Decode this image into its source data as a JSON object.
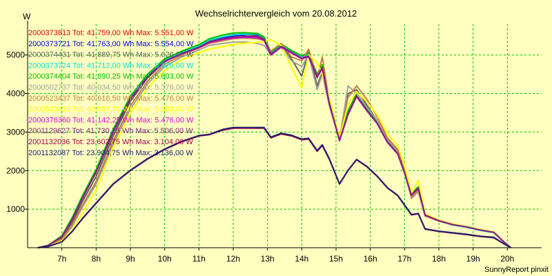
{
  "chart_data": {
    "type": "line",
    "title": "Wechselrichtervergleich vom 20.08.2012",
    "ylabel": "W",
    "xlabel": "",
    "footer": "SunnyReport pinxit",
    "xlim": [
      6.0,
      21.0
    ],
    "ylim": [
      0,
      5800
    ],
    "yticks": [
      {
        "value": 1000,
        "label": "1000"
      },
      {
        "value": 2000,
        "label": "2000"
      },
      {
        "value": 3000,
        "label": "3000"
      },
      {
        "value": 4000,
        "label": "4000"
      },
      {
        "value": 5000,
        "label": "5000"
      }
    ],
    "xticks": [
      {
        "value": 7,
        "label": "7h"
      },
      {
        "value": 8,
        "label": "8h"
      },
      {
        "value": 9,
        "label": "9h"
      },
      {
        "value": 10,
        "label": "10h"
      },
      {
        "value": 11,
        "label": "11h"
      },
      {
        "value": 12,
        "label": "12h"
      },
      {
        "value": 13,
        "label": "13h"
      },
      {
        "value": 14,
        "label": "14h"
      },
      {
        "value": 15,
        "label": "15h"
      },
      {
        "value": 16,
        "label": "16h"
      },
      {
        "value": 17,
        "label": "17h"
      },
      {
        "value": 18,
        "label": "18h"
      },
      {
        "value": 19,
        "label": "19h"
      },
      {
        "value": 20,
        "label": "20h"
      }
    ],
    "grid": true,
    "colors": {
      "background": "#ffffc0",
      "grid": "#00c000",
      "axis": "#000000"
    },
    "x": [
      6.3,
      6.6,
      7.0,
      7.3,
      7.6,
      8.0,
      8.5,
      9.0,
      9.5,
      10.0,
      10.5,
      11.0,
      11.3,
      11.7,
      12.0,
      12.3,
      12.7,
      12.9,
      13.1,
      13.4,
      13.7,
      14.0,
      14.2,
      14.45,
      14.6,
      14.8,
      15.1,
      15.35,
      15.6,
      15.9,
      16.2,
      16.5,
      16.8,
      17.0,
      17.2,
      17.4,
      17.6,
      18.0,
      18.4,
      18.8,
      19.2,
      19.6,
      19.9,
      20.1
    ],
    "series": [
      {
        "name": "2000373813",
        "legend": "2000373813 Tot: 41.759,00 Wh Max: 5.551,00 W",
        "color": "#e00000",
        "values": [
          0,
          60,
          300,
          760,
          1320,
          2000,
          3050,
          3900,
          4480,
          4880,
          5080,
          5250,
          5380,
          5450,
          5500,
          5520,
          5530,
          5450,
          5040,
          5250,
          5100,
          4940,
          5000,
          4480,
          4700,
          3800,
          2800,
          3500,
          3960,
          3580,
          3250,
          2750,
          2450,
          1950,
          1380,
          1560,
          850,
          700,
          600,
          540,
          460,
          400,
          150,
          0
        ]
      },
      {
        "name": "2000373721",
        "legend": "2000373721 Tot: 41.763,00 Wh Max: 5.554,00 W",
        "color": "#0000e0",
        "values": [
          0,
          60,
          300,
          760,
          1320,
          2000,
          3050,
          3900,
          4480,
          4880,
          5080,
          5250,
          5380,
          5450,
          5500,
          5520,
          5530,
          5450,
          5040,
          5250,
          5100,
          4940,
          5000,
          4480,
          4700,
          3800,
          2800,
          3500,
          3960,
          3580,
          3250,
          2750,
          2450,
          1950,
          1380,
          1560,
          850,
          700,
          600,
          540,
          460,
          400,
          150,
          0
        ]
      },
      {
        "name": "2000374431",
        "legend": "2000374431 Tot: 41.889,75 Wh Max: 5.626,00 W",
        "color": "#606060",
        "values": [
          0,
          50,
          250,
          650,
          1200,
          1850,
          2900,
          3800,
          4400,
          4820,
          5050,
          5230,
          5370,
          5470,
          5530,
          5540,
          5500,
          5430,
          5050,
          5280,
          4900,
          4450,
          5100,
          4200,
          4550,
          3700,
          2800,
          4000,
          4100,
          3700,
          3300,
          2800,
          2500,
          1950,
          1300,
          1480,
          830,
          710,
          610,
          550,
          470,
          410,
          150,
          0
        ]
      },
      {
        "name": "2000373724",
        "legend": "2000373724 Tot: 41.712,00 Wh Max: 5.620,00 W",
        "color": "#00e0e0",
        "values": [
          0,
          55,
          290,
          740,
          1300,
          1980,
          3020,
          3880,
          4460,
          4870,
          5070,
          5240,
          5390,
          5470,
          5520,
          5540,
          5550,
          5460,
          5030,
          5240,
          5100,
          4950,
          5000,
          4450,
          4700,
          3800,
          2800,
          3480,
          3950,
          3570,
          3240,
          2740,
          2440,
          1940,
          1370,
          1550,
          840,
          690,
          590,
          530,
          450,
          390,
          150,
          0
        ]
      },
      {
        "name": "2000374404",
        "legend": "2000374404 Tot: 41.890,25 Wh Max: 5.603,00 W",
        "color": "#00c000",
        "values": [
          0,
          60,
          310,
          780,
          1350,
          2030,
          3080,
          3930,
          4500,
          4900,
          5100,
          5270,
          5420,
          5520,
          5570,
          5580,
          5560,
          5470,
          5080,
          5280,
          5120,
          4980,
          5050,
          4500,
          4750,
          3850,
          2850,
          3550,
          4000,
          3600,
          3270,
          2770,
          2470,
          1970,
          1400,
          1580,
          860,
          710,
          610,
          550,
          470,
          410,
          150,
          0
        ]
      },
      {
        "name": "2000502737",
        "legend": "2000502737 Tot: 40.034,50 Wh Max: 5.376,00 W",
        "color": "#a0a0a0",
        "values": [
          0,
          40,
          200,
          550,
          1050,
          1650,
          2700,
          3600,
          4250,
          4700,
          4950,
          5130,
          5250,
          5300,
          5330,
          5340,
          5300,
          5250,
          5000,
          5200,
          4850,
          4700,
          5000,
          4100,
          4500,
          3700,
          2780,
          4200,
          4000,
          3650,
          3300,
          2800,
          2500,
          1950,
          1280,
          1450,
          820,
          690,
          600,
          540,
          460,
          400,
          150,
          0
        ]
      },
      {
        "name": "2000523437",
        "legend": "2000523437 Tot: 40.616,50 Wh Max: 5.476,00 W",
        "color": "#c08040",
        "values": [
          0,
          45,
          220,
          600,
          1100,
          1720,
          2780,
          3680,
          4320,
          4760,
          5000,
          5180,
          5300,
          5370,
          5420,
          5440,
          5420,
          5380,
          5100,
          5300,
          4950,
          4850,
          5150,
          4400,
          4950,
          3800,
          2850,
          3900,
          4200,
          3850,
          3400,
          2850,
          2550,
          2000,
          1300,
          1500,
          830,
          700,
          610,
          550,
          470,
          410,
          150,
          0
        ]
      },
      {
        "name": "2000523439",
        "legend": "2000523439 Tot: 40.097,75 Wh Max: 5.383,00 W",
        "color": "#ffff00",
        "values": [
          0,
          40,
          180,
          450,
          900,
          1500,
          2600,
          3500,
          4150,
          4600,
          4880,
          5060,
          5150,
          5220,
          5270,
          5300,
          5330,
          5340,
          5400,
          5250,
          4700,
          4150,
          5000,
          4800,
          4500,
          3900,
          2850,
          3700,
          4050,
          3780,
          3450,
          2950,
          2650,
          2150,
          1400,
          1750,
          880,
          720,
          620,
          550,
          470,
          410,
          150,
          0
        ]
      },
      {
        "name": "2000376360",
        "legend": "2000376360 Tot: 41.142,25 Wh Max: 5.476,00 W",
        "color": "#e000e0",
        "values": [
          0,
          55,
          280,
          720,
          1280,
          1960,
          3000,
          3850,
          4430,
          4830,
          5030,
          5190,
          5320,
          5400,
          5440,
          5460,
          5450,
          5380,
          5000,
          5200,
          5050,
          4900,
          4950,
          4420,
          4650,
          3750,
          2770,
          3450,
          3920,
          3550,
          3220,
          2730,
          2430,
          1930,
          1360,
          1540,
          840,
          700,
          600,
          540,
          460,
          400,
          150,
          0
        ]
      },
      {
        "name": "2001129627",
        "legend": "2001129627 Tot: 41.730,25 Wh Max: 5.506,00 W",
        "color": "#802080",
        "values": [
          0,
          55,
          285,
          730,
          1290,
          1970,
          3010,
          3860,
          4440,
          4840,
          5040,
          5200,
          5340,
          5420,
          5460,
          5480,
          5480,
          5400,
          5020,
          5220,
          5070,
          4920,
          4970,
          4440,
          4670,
          3770,
          2790,
          3470,
          3940,
          3560,
          3230,
          2740,
          2440,
          1940,
          1370,
          1550,
          850,
          700,
          600,
          540,
          460,
          400,
          150,
          0
        ]
      },
      {
        "name": "2001132036",
        "legend": "2001132036 Tot: 23.602,75 Wh Max: 3.104,00 W",
        "color": "#a00050",
        "values": [
          0,
          30,
          150,
          420,
          750,
          1150,
          1650,
          2000,
          2300,
          2550,
          2750,
          2900,
          2930,
          3050,
          3100,
          3100,
          3100,
          3100,
          2850,
          2950,
          2900,
          2800,
          2820,
          2500,
          2650,
          2300,
          1650,
          2000,
          2280,
          2100,
          1850,
          1550,
          1350,
          1100,
          850,
          880,
          480,
          420,
          380,
          340,
          290,
          260,
          100,
          0
        ]
      },
      {
        "name": "2001132087",
        "legend": "2001132087 Tot: 23.904,75 Wh Max: 3.136,00 W",
        "color": "#202070",
        "values": [
          0,
          30,
          150,
          420,
          760,
          1160,
          1660,
          2010,
          2310,
          2560,
          2760,
          2910,
          2940,
          3070,
          3120,
          3120,
          3120,
          3120,
          2870,
          2970,
          2920,
          2820,
          2840,
          2520,
          2670,
          2320,
          1660,
          2010,
          2290,
          2110,
          1860,
          1560,
          1360,
          1110,
          860,
          890,
          490,
          430,
          390,
          350,
          300,
          270,
          100,
          0
        ]
      }
    ]
  }
}
